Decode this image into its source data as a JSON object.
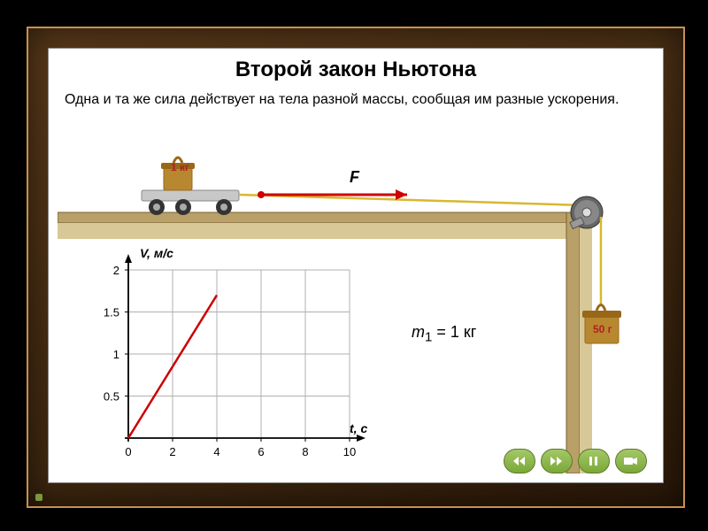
{
  "title": "Второй закон Ньютона",
  "description": "Одна и та же сила действует на тела разной массы, сообщая им разные ускорения.",
  "weight_on_cart": "1 кг",
  "force_label": "F",
  "hanging_weight": "50 г",
  "equation": {
    "var": "m",
    "sub": "1",
    "eq": " = ",
    "val": "1",
    "unit": " кг"
  },
  "chart": {
    "ylabel": "V, м/с",
    "xlabel": "t, с",
    "y_ticks": [
      "0.5",
      "1",
      "1.5",
      "2"
    ],
    "x_ticks": [
      "0",
      "2",
      "4",
      "6",
      "8",
      "10"
    ],
    "line": {
      "x1": 0,
      "y1": 0,
      "x2": 4,
      "y2": 1.7,
      "color": "#cc0000"
    },
    "axis_color": "#000",
    "grid_color": "#b0b0b0",
    "xmax": 10,
    "ymax": 2
  },
  "colors": {
    "table": "#d8c898",
    "table_top": "#b8a068",
    "table_edge": "#786030",
    "weight_body": "#b88830",
    "weight_dark": "#986818",
    "arrow": "#d00000",
    "pulley": "#888",
    "pulley_dark": "#555",
    "rope": "#d8b830",
    "cart": "#c8c8c8",
    "wheel": "#333"
  },
  "buttons": {
    "back": "rewind",
    "fwd": "forward",
    "pause": "pause",
    "cam": "camera"
  }
}
